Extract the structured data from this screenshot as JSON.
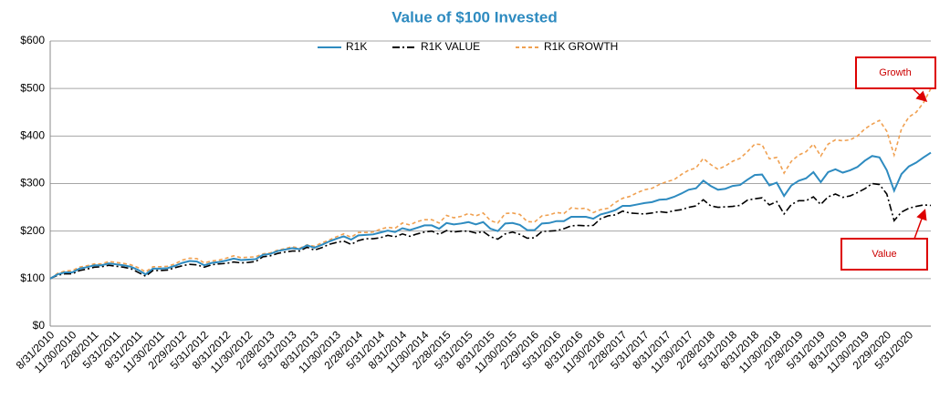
{
  "chart_data": {
    "type": "line",
    "title": "Value of $100 Invested",
    "categories": [
      "8/31/2010",
      null,
      null,
      "11/30/2010",
      null,
      null,
      "2/28/2011",
      null,
      null,
      "5/31/2011",
      null,
      null,
      "8/31/2011",
      null,
      null,
      "11/30/2011",
      null,
      null,
      "2/29/2012",
      null,
      null,
      "5/31/2012",
      null,
      null,
      "8/31/2012",
      null,
      null,
      "11/30/2012",
      null,
      null,
      "2/28/2013",
      null,
      null,
      "5/31/2013",
      null,
      null,
      "8/31/2013",
      null,
      null,
      "11/30/2013",
      null,
      null,
      "2/28/2014",
      null,
      null,
      "5/31/2014",
      null,
      null,
      "8/31/2014",
      null,
      null,
      "11/30/2014",
      null,
      null,
      "2/28/2015",
      null,
      null,
      "5/31/2015",
      null,
      null,
      "8/31/2015",
      null,
      null,
      "11/30/2015",
      null,
      null,
      "2/29/2016",
      null,
      null,
      "5/31/2016",
      null,
      null,
      "8/31/2016",
      null,
      null,
      "11/30/2016",
      null,
      null,
      "2/28/2017",
      null,
      null,
      "5/31/2017",
      null,
      null,
      "8/31/2017",
      null,
      null,
      "11/30/2017",
      null,
      null,
      "2/28/2018",
      null,
      null,
      "5/31/2018",
      null,
      null,
      "8/31/2018",
      null,
      null,
      "11/30/2018",
      null,
      null,
      "2/28/2019",
      null,
      null,
      "5/31/2019",
      null,
      null,
      "8/31/2019",
      null,
      null,
      "11/30/2019",
      null,
      null,
      "2/29/2020",
      null,
      null,
      "5/31/2020",
      null,
      null,
      null
    ],
    "series": [
      {
        "name": "R1K",
        "color": "#2e8bc0",
        "dash": "solid",
        "values": [
          100,
          109,
          113,
          113,
          121,
          124,
          128,
          128,
          132,
          130,
          128,
          125,
          118,
          109,
          121,
          121,
          122,
          127,
          133,
          137,
          136,
          128,
          133,
          135,
          138,
          142,
          139,
          140,
          141,
          150,
          152,
          158,
          161,
          164,
          162,
          170,
          165,
          171,
          178,
          184,
          189,
          182,
          191,
          192,
          193,
          197,
          201,
          198,
          206,
          202,
          207,
          212,
          212,
          205,
          217,
          214,
          216,
          219,
          214,
          219,
          205,
          200,
          216,
          217,
          213,
          202,
          202,
          216,
          217,
          221,
          221,
          230,
          230,
          230,
          226,
          235,
          239,
          244,
          253,
          253,
          256,
          259,
          261,
          266,
          267,
          272,
          279,
          287,
          290,
          306,
          295,
          287,
          289,
          295,
          297,
          308,
          318,
          319,
          296,
          302,
          274,
          296,
          306,
          311,
          324,
          303,
          324,
          330,
          323,
          328,
          335,
          348,
          358,
          355,
          328,
          285,
          320,
          336,
          344,
          355,
          365
        ]
      },
      {
        "name": "R1K VALUE",
        "color": "#000000",
        "dash": "dashdot",
        "values": [
          100,
          107,
          110,
          110,
          117,
          120,
          124,
          125,
          128,
          126,
          124,
          121,
          113,
          105,
          117,
          117,
          118,
          123,
          127,
          130,
          129,
          124,
          129,
          131,
          132,
          135,
          133,
          134,
          136,
          146,
          148,
          153,
          156,
          158,
          158,
          166,
          160,
          165,
          172,
          176,
          179,
          172,
          180,
          184,
          184,
          186,
          191,
          188,
          194,
          189,
          194,
          198,
          200,
          193,
          201,
          198,
          200,
          200,
          196,
          199,
          188,
          183,
          194,
          198,
          193,
          185,
          186,
          199,
          200,
          201,
          205,
          211,
          212,
          211,
          212,
          226,
          232,
          234,
          242,
          238,
          237,
          236,
          238,
          241,
          239,
          243,
          245,
          250,
          253,
          266,
          253,
          250,
          251,
          252,
          254,
          265,
          268,
          270,
          255,
          262,
          236,
          256,
          264,
          264,
          272,
          256,
          272,
          278,
          271,
          274,
          281,
          289,
          300,
          298,
          278,
          222,
          240,
          248,
          252,
          255,
          254
        ]
      },
      {
        "name": "R1K GROWTH",
        "color": "#f0a050",
        "dash": "dashed",
        "values": [
          100,
          111,
          116,
          117,
          124,
          127,
          131,
          131,
          136,
          134,
          132,
          129,
          123,
          114,
          125,
          125,
          126,
          131,
          139,
          143,
          142,
          133,
          137,
          139,
          143,
          148,
          144,
          145,
          146,
          152,
          154,
          160,
          163,
          167,
          164,
          171,
          168,
          175,
          181,
          188,
          194,
          187,
          197,
          197,
          198,
          204,
          208,
          206,
          217,
          213,
          220,
          224,
          224,
          217,
          233,
          228,
          231,
          237,
          232,
          238,
          222,
          217,
          237,
          238,
          235,
          220,
          219,
          232,
          234,
          239,
          237,
          249,
          247,
          248,
          239,
          245,
          248,
          260,
          269,
          273,
          281,
          287,
          290,
          298,
          304,
          308,
          319,
          328,
          333,
          353,
          340,
          330,
          337,
          347,
          353,
          367,
          383,
          382,
          352,
          355,
          322,
          347,
          360,
          367,
          383,
          358,
          383,
          392,
          390,
          392,
          400,
          415,
          425,
          433,
          410,
          360,
          415,
          440,
          450,
          470,
          500
        ]
      }
    ],
    "ylim": [
      0,
      600
    ],
    "yticks": [
      {
        "value": 0,
        "label": "$0"
      },
      {
        "value": 100,
        "label": "$100"
      },
      {
        "value": 200,
        "label": "$200"
      },
      {
        "value": 300,
        "label": "$300"
      },
      {
        "value": 400,
        "label": "$400"
      },
      {
        "value": 500,
        "label": "$500"
      },
      {
        "value": 600,
        "label": "$600"
      }
    ],
    "grid": true,
    "legend": "top",
    "annotations": [
      "Growth",
      "Value"
    ]
  }
}
